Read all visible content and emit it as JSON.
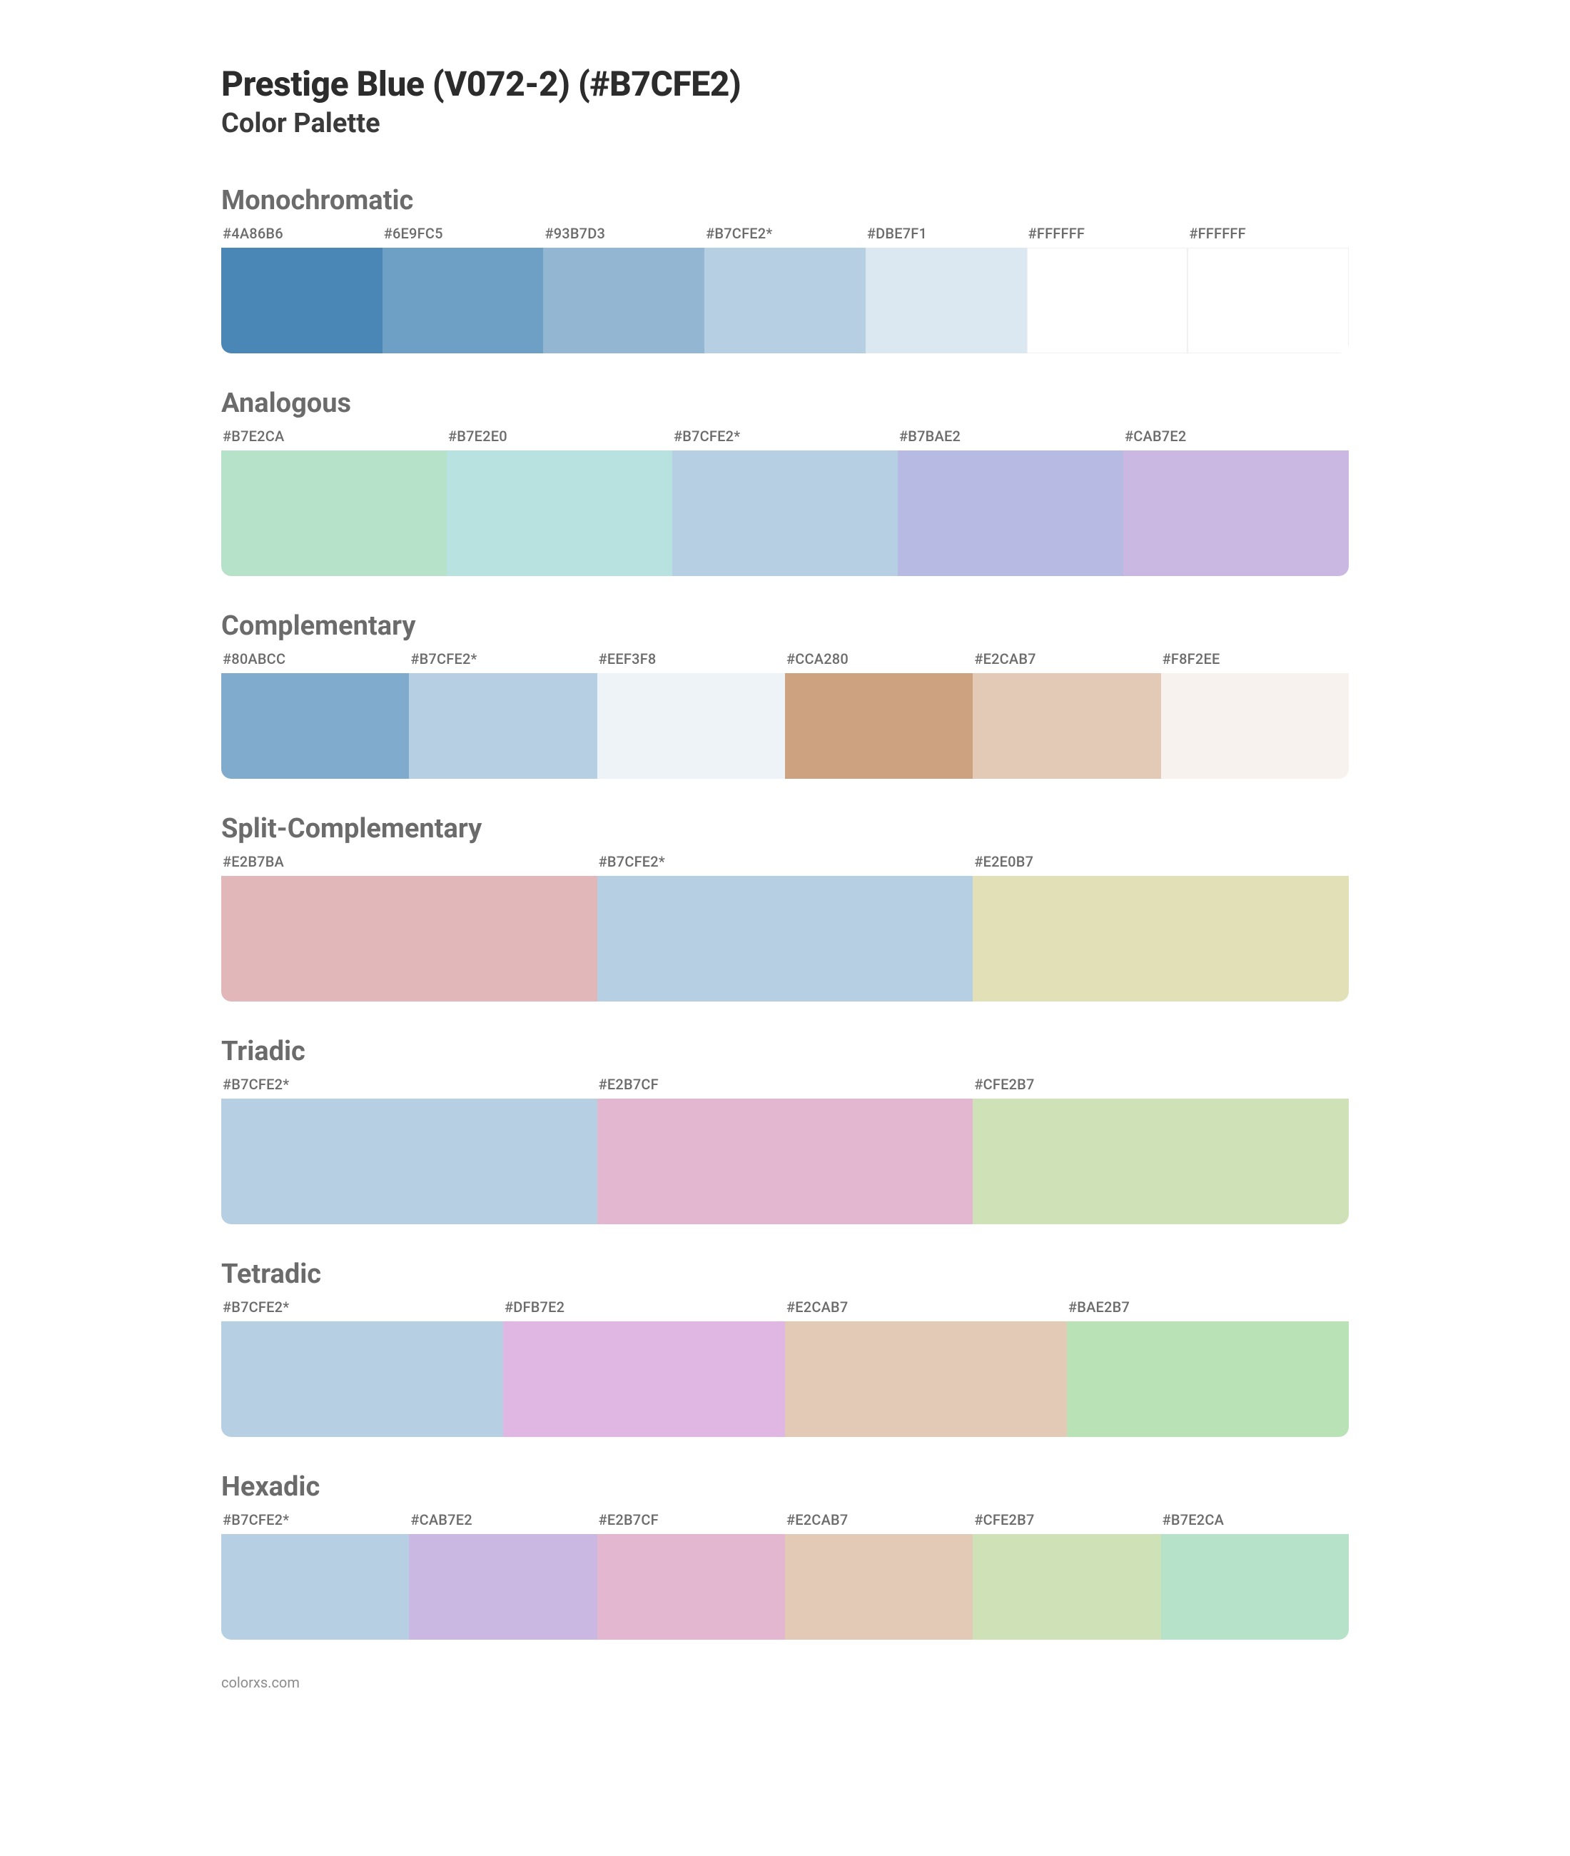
{
  "page": {
    "title": "Prestige Blue (V072-2) (#B7CFE2)",
    "subtitle": "Color Palette",
    "footer": "colorxs.com",
    "background": "#ffffff",
    "title_color": "#2c2c2c",
    "subtitle_color": "#3a3a3a",
    "section_title_color": "#6b6b6b",
    "label_color": "#6b6b6b",
    "title_fontsize": 48,
    "subtitle_fontsize": 38,
    "section_title_fontsize": 38,
    "label_fontsize": 20,
    "swatch_border_radius": 14
  },
  "sections": [
    {
      "title": "Monochromatic",
      "swatch_height": 148,
      "swatches": [
        {
          "label": "#4A86B6",
          "color": "#4A86B6",
          "border": "none"
        },
        {
          "label": "#6E9FC5",
          "color": "#6E9FC5",
          "border": "none"
        },
        {
          "label": "#93B7D3",
          "color": "#93B7D3",
          "border": "none"
        },
        {
          "label": "#B7CFE2*",
          "color": "#B7CFE2",
          "border": "none"
        },
        {
          "label": "#DBE7F1",
          "color": "#DBE7F1",
          "border": "none"
        },
        {
          "label": "#FFFFFF",
          "color": "#FFFFFF",
          "border": "1px solid #f0f0f0"
        },
        {
          "label": "#FFFFFF",
          "color": "#FFFFFF",
          "border": "1px solid #f0f0f0"
        }
      ]
    },
    {
      "title": "Analogous",
      "swatch_height": 176,
      "swatches": [
        {
          "label": "#B7E2CA",
          "color": "#B7E2CA",
          "border": "none"
        },
        {
          "label": "#B7E2E0",
          "color": "#B7E2E0",
          "border": "none"
        },
        {
          "label": "#B7CFE2*",
          "color": "#B7CFE2",
          "border": "none"
        },
        {
          "label": "#B7BAE2",
          "color": "#B7BAE2",
          "border": "none"
        },
        {
          "label": "#CAB7E2",
          "color": "#CAB7E2",
          "border": "none"
        }
      ]
    },
    {
      "title": "Complementary",
      "swatch_height": 148,
      "swatches": [
        {
          "label": "#80ABCC",
          "color": "#80ABCC",
          "border": "none"
        },
        {
          "label": "#B7CFE2*",
          "color": "#B7CFE2",
          "border": "none"
        },
        {
          "label": "#EEF3F8",
          "color": "#EEF3F8",
          "border": "none"
        },
        {
          "label": "#CCA280",
          "color": "#CCA280",
          "border": "none"
        },
        {
          "label": "#E2CAB7",
          "color": "#E2CAB7",
          "border": "none"
        },
        {
          "label": "#F8F2EE",
          "color": "#F8F2EE",
          "border": "none"
        }
      ]
    },
    {
      "title": "Split-Complementary",
      "swatch_height": 176,
      "swatches": [
        {
          "label": "#E2B7BA",
          "color": "#E2B7BA",
          "border": "none"
        },
        {
          "label": "#B7CFE2*",
          "color": "#B7CFE2",
          "border": "none"
        },
        {
          "label": "#E2E0B7",
          "color": "#E2E0B7",
          "border": "none"
        }
      ]
    },
    {
      "title": "Triadic",
      "swatch_height": 176,
      "swatches": [
        {
          "label": "#B7CFE2*",
          "color": "#B7CFE2",
          "border": "none"
        },
        {
          "label": "#E2B7CF",
          "color": "#E2B7CF",
          "border": "none"
        },
        {
          "label": "#CFE2B7",
          "color": "#CFE2B7",
          "border": "none"
        }
      ]
    },
    {
      "title": "Tetradic",
      "swatch_height": 162,
      "swatches": [
        {
          "label": "#B7CFE2*",
          "color": "#B7CFE2",
          "border": "none"
        },
        {
          "label": "#DFB7E2",
          "color": "#DFB7E2",
          "border": "none"
        },
        {
          "label": "#E2CAB7",
          "color": "#E2CAB7",
          "border": "none"
        },
        {
          "label": "#BAE2B7",
          "color": "#BAE2B7",
          "border": "none"
        }
      ]
    },
    {
      "title": "Hexadic",
      "swatch_height": 148,
      "swatches": [
        {
          "label": "#B7CFE2*",
          "color": "#B7CFE2",
          "border": "none"
        },
        {
          "label": "#CAB7E2",
          "color": "#CAB7E2",
          "border": "none"
        },
        {
          "label": "#E2B7CF",
          "color": "#E2B7CF",
          "border": "none"
        },
        {
          "label": "#E2CAB7",
          "color": "#E2CAB7",
          "border": "none"
        },
        {
          "label": "#CFE2B7",
          "color": "#CFE2B7",
          "border": "none"
        },
        {
          "label": "#B7E2CA",
          "color": "#B7E2CA",
          "border": "none"
        }
      ]
    }
  ]
}
